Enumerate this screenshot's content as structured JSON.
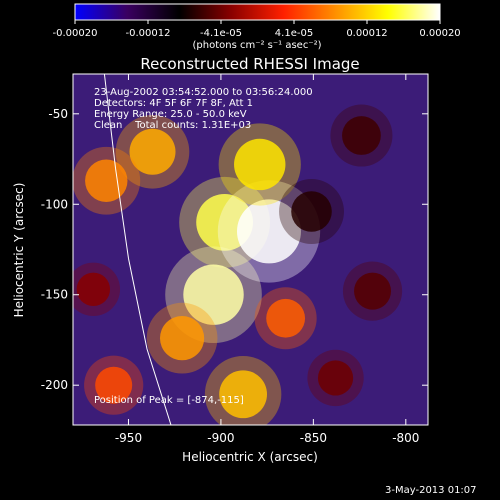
{
  "colorbar": {
    "unit_line": "(photons cm⁻² s⁻¹ asec⁻²)",
    "ticks": [
      "-0.00020",
      "-0.00012",
      "-4.1e-05",
      "4.1e-05",
      "0.00012",
      "0.00020"
    ],
    "range": [
      -0.0002,
      0.0002
    ],
    "colors": [
      "#0000ff",
      "#3a0060",
      "#000000",
      "#8a0000",
      "#ff2000",
      "#ff9000",
      "#ffff00",
      "#ffffff"
    ]
  },
  "overlay": {
    "time_range": "23-Aug-2002 03:54:52.000 to 03:56:24.000",
    "detectors": "Detectors: 4F 5F 6F 7F 8F, Att 1",
    "energy": "Energy Range: 25.0 - 50.0 keV",
    "clean": "Clean    Total counts: 1.31E+03",
    "peak": "Position of Peak = [-874,-115]"
  },
  "footer": {
    "timestamp": "3-May-2013 01:07"
  },
  "chart_data": {
    "type": "heatmap",
    "title": "Reconstructed RHESSI Image",
    "xlabel": "Heliocentric X (arcsec)",
    "ylabel": "Heliocentric Y (arcsec)",
    "xlim": [
      -980,
      -788
    ],
    "ylim": [
      -222,
      -28
    ],
    "x_ticks": [
      -950,
      -900,
      -850,
      -800
    ],
    "y_ticks": [
      -50,
      -100,
      -150,
      -200
    ],
    "x_tick_labels": [
      "-950",
      "-900",
      "-850",
      "-800"
    ],
    "y_tick_labels": [
      "-50",
      "-100",
      "-150",
      "-200"
    ],
    "peak": [
      -874,
      -115
    ],
    "limb_points": [
      [
        -963,
        -28
      ],
      [
        -957,
        -80
      ],
      [
        -950,
        -130
      ],
      [
        -940,
        -180
      ],
      [
        -927,
        -222
      ]
    ],
    "sources": [
      {
        "x": -898,
        "y": -110,
        "value": 0.00016
      },
      {
        "x": -904,
        "y": -150,
        "value": 0.00018
      },
      {
        "x": -874,
        "y": -115,
        "value": 0.0002
      },
      {
        "x": -879,
        "y": -78,
        "value": 0.00013
      },
      {
        "x": -937,
        "y": -71,
        "value": 0.0001
      },
      {
        "x": -962,
        "y": -87,
        "value": 8e-05
      },
      {
        "x": -921,
        "y": -174,
        "value": 9e-05
      },
      {
        "x": -888,
        "y": -205,
        "value": 0.00011
      },
      {
        "x": -865,
        "y": -163,
        "value": 6e-05
      },
      {
        "x": -851,
        "y": -104,
        "value": -7e-05
      },
      {
        "x": -824,
        "y": -62,
        "value": -6e-05
      },
      {
        "x": -818,
        "y": -148,
        "value": -5e-05
      },
      {
        "x": -838,
        "y": -196,
        "value": -4e-05
      },
      {
        "x": -958,
        "y": -200,
        "value": 5e-05
      },
      {
        "x": -969,
        "y": -147,
        "value": -3e-05
      }
    ]
  }
}
